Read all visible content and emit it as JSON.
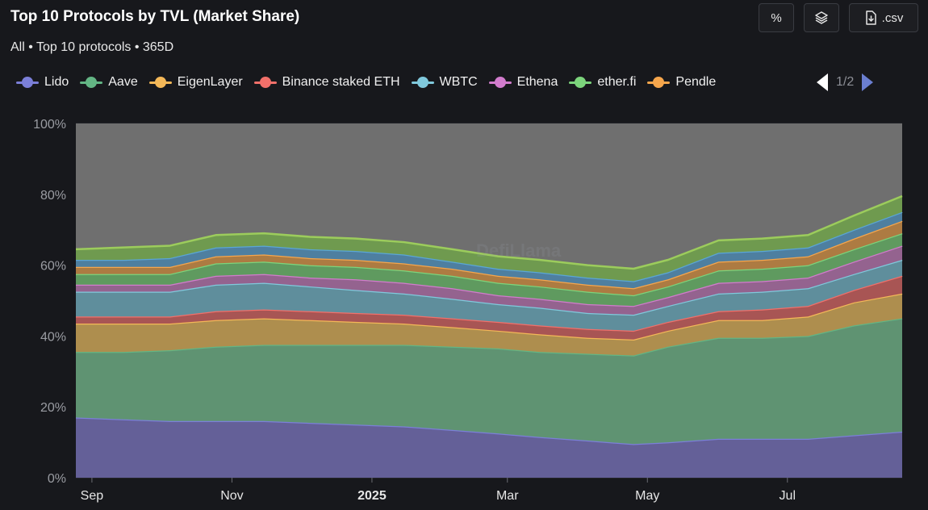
{
  "header": {
    "title": "Top 10 Protocols by TVL (Market Share)",
    "subtitle": "All • Top 10 protocols • 365D"
  },
  "toolbar": {
    "percent_label": "%",
    "stack_icon": "layers-icon",
    "csv_label": ".csv",
    "csv_icon": "download-file-icon"
  },
  "pager": {
    "label": "1/2"
  },
  "watermark": "DefiLlama",
  "chart_data": {
    "type": "area",
    "stacked": true,
    "unit": "%",
    "ylim": [
      0,
      100
    ],
    "yticks": [
      0,
      20,
      40,
      60,
      80,
      100
    ],
    "x": [
      "2024-08-25",
      "2024-09-15",
      "2024-10-05",
      "2024-10-25",
      "2024-11-15",
      "2024-12-05",
      "2024-12-25",
      "2025-01-15",
      "2025-02-05",
      "2025-02-25",
      "2025-03-15",
      "2025-04-05",
      "2025-04-25",
      "2025-05-10",
      "2025-06-01",
      "2025-06-20",
      "2025-07-10",
      "2025-07-30",
      "2025-08-20"
    ],
    "xticks": [
      {
        "date": "2024-09-01",
        "label": "Sep",
        "bold": false
      },
      {
        "date": "2024-11-01",
        "label": "Nov",
        "bold": false
      },
      {
        "date": "2025-01-01",
        "label": "2025",
        "bold": true
      },
      {
        "date": "2025-03-01",
        "label": "Mar",
        "bold": false
      },
      {
        "date": "2025-05-01",
        "label": "May",
        "bold": false
      },
      {
        "date": "2025-07-01",
        "label": "Jul",
        "bold": false
      }
    ],
    "xlabel": "",
    "ylabel": "",
    "grid": true,
    "legend_position": "top",
    "others_color": "#6f6f6f",
    "series": [
      {
        "name": "Lido",
        "color": "#7b7fd8",
        "fill": "#646098",
        "values": [
          17,
          16.5,
          16,
          16,
          16,
          15.5,
          15,
          14.5,
          13.5,
          12.5,
          11.5,
          10.5,
          9.5,
          10,
          11,
          11,
          11,
          12,
          13
        ]
      },
      {
        "name": "Aave",
        "color": "#63b584",
        "fill": "#5f9372",
        "values": [
          18.5,
          19,
          20,
          21,
          21.5,
          22,
          22.5,
          23,
          23.5,
          24,
          24,
          24.5,
          25,
          27,
          28.5,
          28.5,
          29,
          31,
          32
        ]
      },
      {
        "name": "EigenLayer",
        "color": "#f4b858",
        "fill": "#ae8e4e",
        "values": [
          8,
          8,
          7.5,
          7.5,
          7.5,
          7,
          6.5,
          6,
          5.5,
          5,
          5,
          4.5,
          4.5,
          4.5,
          5,
          5,
          5.5,
          6.5,
          7
        ]
      },
      {
        "name": "Binance staked ETH",
        "color": "#f2706a",
        "fill": "#a85554",
        "values": [
          2,
          2,
          2,
          2.5,
          2.5,
          2.5,
          2.5,
          2.5,
          2.5,
          2.5,
          2.5,
          2.5,
          2.5,
          2.5,
          2.5,
          3,
          3,
          3.5,
          5
        ]
      },
      {
        "name": "WBTC",
        "color": "#80c9dc",
        "fill": "#5f8e9c",
        "values": [
          7,
          7,
          7,
          7.5,
          7.5,
          7,
          6.5,
          6,
          5.5,
          5,
          5,
          4.5,
          4.5,
          4.5,
          5,
          5,
          5,
          4.5,
          4.5
        ]
      },
      {
        "name": "Ethena",
        "color": "#d27ccd",
        "fill": "#94638f",
        "values": [
          2,
          2,
          2,
          2.5,
          2.5,
          2.5,
          3,
          3,
          3,
          2.5,
          2.5,
          2.5,
          2.5,
          2.5,
          3,
          3,
          3,
          3.5,
          4
        ]
      },
      {
        "name": "ether.fi",
        "color": "#7cd47c",
        "fill": "#5f9a5f",
        "values": [
          3,
          3,
          3,
          3.5,
          3.5,
          3.5,
          3.5,
          3.5,
          3.5,
          3.5,
          3.5,
          3.5,
          3,
          3,
          3.5,
          3.5,
          3.5,
          3.5,
          3.5
        ]
      },
      {
        "name": "Pendle",
        "color": "#f6a64c",
        "fill": "#ad7b42",
        "values": [
          2,
          2,
          2,
          2,
          2,
          2,
          2,
          2,
          2,
          2,
          2,
          2,
          2,
          2,
          2.5,
          2.5,
          2.5,
          3,
          3.5
        ]
      },
      {
        "name": "",
        "color": "#5aa6d6",
        "fill": "#4e7fa0",
        "values": [
          2,
          2,
          2.5,
          2.5,
          2.5,
          2.5,
          2.5,
          2.5,
          2,
          2,
          2,
          2,
          2,
          2,
          2.5,
          2.5,
          2.5,
          2.5,
          2.5
        ]
      },
      {
        "name": "",
        "color": "#9ccc5c",
        "fill": "#6f9a4f",
        "values": [
          3,
          3.5,
          3.5,
          3.5,
          3.5,
          3.5,
          3.5,
          3.5,
          3.5,
          3.5,
          3.5,
          3.5,
          3.5,
          3.5,
          3.5,
          3.5,
          3.5,
          4,
          4.5
        ]
      }
    ]
  }
}
